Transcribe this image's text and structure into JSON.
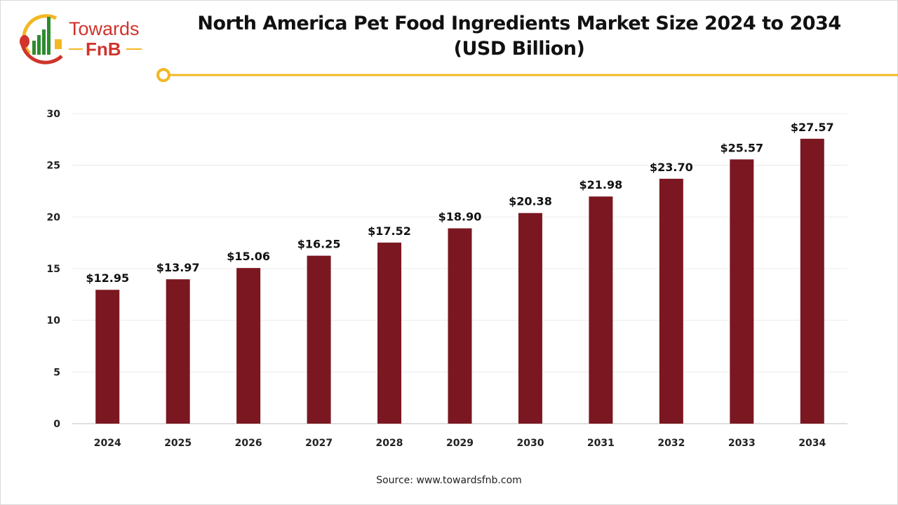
{
  "logo": {
    "text_line1": "Towards",
    "text_line2": "FnB"
  },
  "colors": {
    "bar": "#7b1721",
    "accent_line": "#f2b824",
    "logo_red": "#d0342c",
    "logo_green": "#2e8b2e"
  },
  "chart_data": {
    "type": "bar",
    "title": "North America Pet Food Ingredients Market Size 2024 to 2034",
    "subtitle": "(USD Billion)",
    "categories": [
      "2024",
      "2025",
      "2026",
      "2027",
      "2028",
      "2029",
      "2030",
      "2031",
      "2032",
      "2033",
      "2034"
    ],
    "values": [
      12.95,
      13.97,
      15.06,
      16.25,
      17.52,
      18.9,
      20.38,
      21.98,
      23.7,
      25.57,
      27.57
    ],
    "data_labels": [
      "$12.95",
      "$13.97",
      "$15.06",
      "$16.25",
      "$17.52",
      "$18.90",
      "$20.38",
      "$21.98",
      "$23.70",
      "$25.57",
      "$27.57"
    ],
    "yticks": [
      "0",
      "5",
      "10",
      "15",
      "20",
      "25",
      "30"
    ],
    "ylim": [
      0,
      30
    ],
    "grid": true,
    "xlabel": "",
    "ylabel": ""
  },
  "source": "Source: www.towardsfnb.com"
}
